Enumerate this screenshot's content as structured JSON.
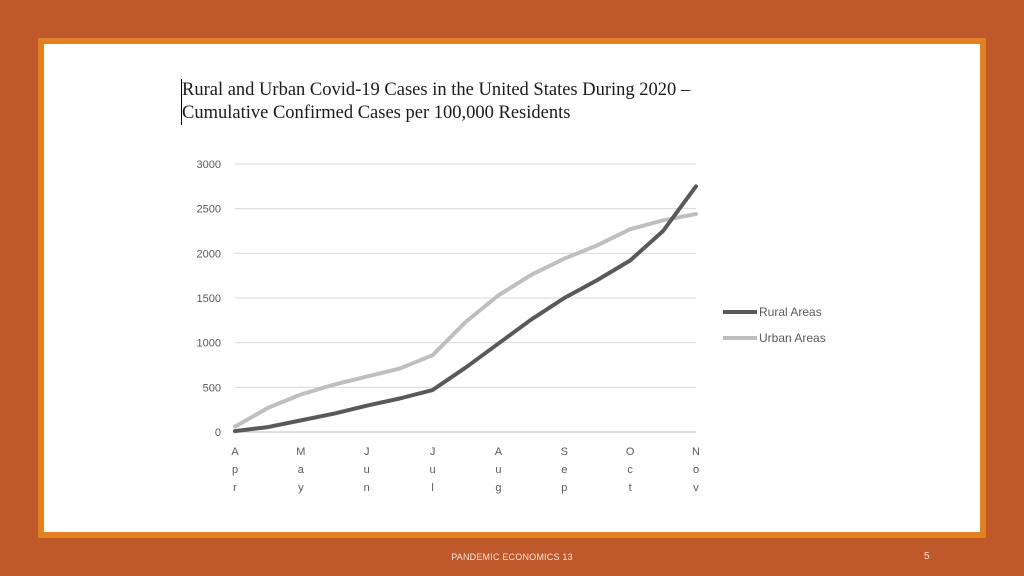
{
  "slide": {
    "footer": "PANDEMIC ECONOMICS 13",
    "page_number": "5"
  },
  "chart_data": {
    "type": "line",
    "title_lines": [
      "Rural and Urban Covid-19 Cases in the United States During 2020 –",
      "Cumulative Confirmed Cases per 100,000 Residents"
    ],
    "xlabel": "",
    "ylabel": "",
    "ylim": [
      0,
      3000
    ],
    "yticks": [
      0,
      500,
      1000,
      1500,
      2000,
      2500,
      3000
    ],
    "x_tick_labels": [
      "Apr",
      "May",
      "Jun",
      "Jul",
      "Aug",
      "Sep",
      "Oct",
      "Nov"
    ],
    "x": [
      "Apr",
      "Apr-mid",
      "May",
      "May-mid",
      "Jun",
      "Jun-mid",
      "Jul",
      "Jul-mid",
      "Aug",
      "Aug-mid",
      "Sep",
      "Sep-mid",
      "Oct",
      "Oct-mid",
      "Nov"
    ],
    "grid": true,
    "legend_position": "right",
    "series": [
      {
        "name": "Rural Areas",
        "color": "#595959",
        "values": [
          10,
          55,
          130,
          205,
          295,
          375,
          470,
          720,
          990,
          1260,
          1500,
          1700,
          1920,
          2250,
          2750
        ]
      },
      {
        "name": "Urban Areas",
        "color": "#bfbfbf",
        "values": [
          60,
          270,
          420,
          530,
          620,
          710,
          860,
          1230,
          1530,
          1760,
          1940,
          2090,
          2270,
          2370,
          2440
        ]
      }
    ]
  }
}
